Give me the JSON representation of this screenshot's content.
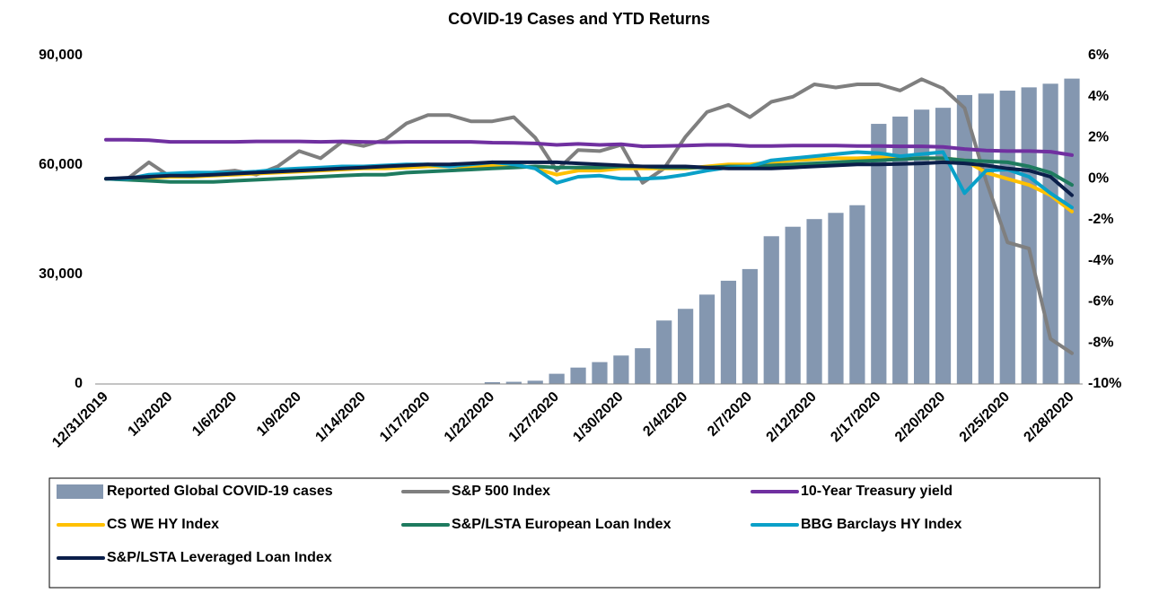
{
  "chart_data": {
    "type": "combo",
    "title": "COVID-19 Cases and YTD Returns",
    "categories": [
      "12/31/2019",
      null,
      null,
      "1/3/2020",
      null,
      null,
      "1/6/2020",
      null,
      null,
      "1/9/2020",
      null,
      null,
      "1/14/2020",
      null,
      null,
      "1/17/2020",
      null,
      null,
      "1/22/2020",
      null,
      null,
      "1/27/2020",
      null,
      null,
      "1/30/2020",
      null,
      null,
      "2/4/2020",
      null,
      null,
      "2/7/2020",
      null,
      null,
      "2/12/2020",
      null,
      null,
      "2/17/2020",
      null,
      null,
      "2/20/2020",
      null,
      null,
      "2/25/2020",
      null,
      null,
      "2/28/2020"
    ],
    "ylim": [
      0,
      90000
    ],
    "yticks": [
      0,
      {
        "value": 30000,
        "label": "30,000"
      },
      {
        "value": 60000,
        "label": "60,000"
      },
      {
        "value": 90000,
        "label": "90,000"
      }
    ],
    "y2lim": [
      -10,
      6
    ],
    "y2ticks": [
      {
        "value": -10,
        "label": "-10%"
      },
      {
        "value": -8,
        "label": "-8%"
      },
      {
        "value": -6,
        "label": "-6%"
      },
      {
        "value": -4,
        "label": "-4%"
      },
      {
        "value": -2,
        "label": "-2%"
      },
      {
        "value": 0,
        "label": "0%"
      },
      {
        "value": 2,
        "label": "2%"
      },
      {
        "value": 4,
        "label": "4%"
      },
      {
        "value": 6,
        "label": "6%"
      }
    ],
    "legend": "bottom",
    "series": [
      {
        "name": "Reported Global COVID-19 cases",
        "type": "bar",
        "color": "#8497b0",
        "values": [
          0,
          0,
          0,
          0,
          0,
          0,
          0,
          0,
          0,
          0,
          0,
          0,
          0,
          0,
          0,
          0,
          0,
          0,
          500,
          600,
          900,
          2800,
          4500,
          6000,
          7800,
          9800,
          17400,
          20600,
          24500,
          28300,
          31500,
          40500,
          43100,
          45200,
          46900,
          49000,
          71300,
          73300,
          75200,
          75700,
          79200,
          79600,
          80400,
          81300,
          82300,
          83700
        ]
      },
      {
        "name": "S&P 500 Index",
        "type": "line",
        "axis": "y2",
        "color": "#7f7f7f",
        "values": [
          0,
          0,
          0.8,
          0.1,
          0.1,
          0.3,
          0.4,
          0.2,
          0.6,
          1.35,
          1.0,
          1.8,
          1.6,
          1.9,
          2.7,
          3.1,
          3.1,
          2.8,
          2.8,
          3.0,
          2.0,
          0.4,
          1.4,
          1.35,
          1.65,
          -0.2,
          0.5,
          2.05,
          3.25,
          3.6,
          3.0,
          3.75,
          4.0,
          4.6,
          4.45,
          4.6,
          4.6,
          4.3,
          4.85,
          4.4,
          3.45,
          -0.1,
          -3.1,
          -3.4,
          -7.8,
          -8.5
        ]
      },
      {
        "name": "10-Year Treasury yield",
        "type": "line",
        "axis": "y2",
        "color": "#7030a0",
        "values": [
          1.9,
          1.9,
          1.88,
          1.8,
          1.8,
          1.8,
          1.8,
          1.82,
          1.82,
          1.82,
          1.8,
          1.82,
          1.8,
          1.78,
          1.8,
          1.8,
          1.8,
          1.8,
          1.76,
          1.75,
          1.72,
          1.65,
          1.7,
          1.65,
          1.68,
          1.58,
          1.6,
          1.62,
          1.65,
          1.65,
          1.6,
          1.6,
          1.62,
          1.62,
          1.62,
          1.6,
          1.6,
          1.58,
          1.58,
          1.55,
          1.45,
          1.38,
          1.35,
          1.35,
          1.32,
          1.15
        ]
      },
      {
        "name": "CS WE HY Index",
        "type": "line",
        "axis": "y2",
        "color": "#ffc000",
        "values": [
          0,
          0,
          0.05,
          0.1,
          0.1,
          0.15,
          0.2,
          0.25,
          0.3,
          0.35,
          0.4,
          0.45,
          0.5,
          0.5,
          0.55,
          0.6,
          0.6,
          0.6,
          0.65,
          0.7,
          0.5,
          0.2,
          0.4,
          0.4,
          0.5,
          0.5,
          0.5,
          0.5,
          0.6,
          0.7,
          0.7,
          0.8,
          0.9,
          0.95,
          1.0,
          1.0,
          1.05,
          1.0,
          1.0,
          1.0,
          0.9,
          0.3,
          0.0,
          -0.3,
          -0.8,
          -1.6
        ]
      },
      {
        "name": "S&P/LSTA European Loan Index",
        "type": "line",
        "axis": "y2",
        "color": "#1e7b5f",
        "values": [
          0,
          -0.05,
          -0.1,
          -0.15,
          -0.15,
          -0.15,
          -0.1,
          -0.05,
          0,
          0.05,
          0.1,
          0.15,
          0.2,
          0.2,
          0.3,
          0.35,
          0.4,
          0.45,
          0.5,
          0.55,
          0.6,
          0.55,
          0.55,
          0.55,
          0.6,
          0.6,
          0.55,
          0.55,
          0.55,
          0.6,
          0.6,
          0.65,
          0.7,
          0.75,
          0.8,
          0.85,
          0.9,
          0.95,
          1.0,
          1.0,
          0.9,
          0.85,
          0.8,
          0.6,
          0.3,
          -0.3
        ]
      },
      {
        "name": "BBG Barclays HY Index",
        "type": "line",
        "axis": "y2",
        "color": "#0aa0c8",
        "values": [
          0,
          0,
          0.2,
          0.25,
          0.3,
          0.3,
          0.3,
          0.35,
          0.45,
          0.5,
          0.55,
          0.6,
          0.6,
          0.65,
          0.7,
          0.7,
          0.6,
          0.7,
          0.8,
          0.7,
          0.5,
          -0.2,
          0.1,
          0.15,
          0,
          0,
          0.05,
          0.2,
          0.4,
          0.55,
          0.6,
          0.9,
          1.0,
          1.1,
          1.2,
          1.3,
          1.25,
          1.1,
          1.2,
          1.3,
          -0.7,
          0.4,
          0.45,
          0.1,
          -0.7,
          -1.4
        ]
      },
      {
        "name": "S&P/LSTA Leveraged Loan Index",
        "type": "line",
        "axis": "y2",
        "color": "#0b1f4a",
        "values": [
          0,
          0.05,
          0.1,
          0.15,
          0.15,
          0.2,
          0.25,
          0.3,
          0.35,
          0.4,
          0.45,
          0.5,
          0.55,
          0.6,
          0.65,
          0.7,
          0.7,
          0.75,
          0.8,
          0.8,
          0.8,
          0.8,
          0.75,
          0.7,
          0.65,
          0.6,
          0.6,
          0.6,
          0.55,
          0.5,
          0.5,
          0.5,
          0.55,
          0.6,
          0.65,
          0.7,
          0.7,
          0.72,
          0.75,
          0.8,
          0.75,
          0.65,
          0.5,
          0.4,
          0.1,
          -0.8
        ]
      }
    ]
  }
}
